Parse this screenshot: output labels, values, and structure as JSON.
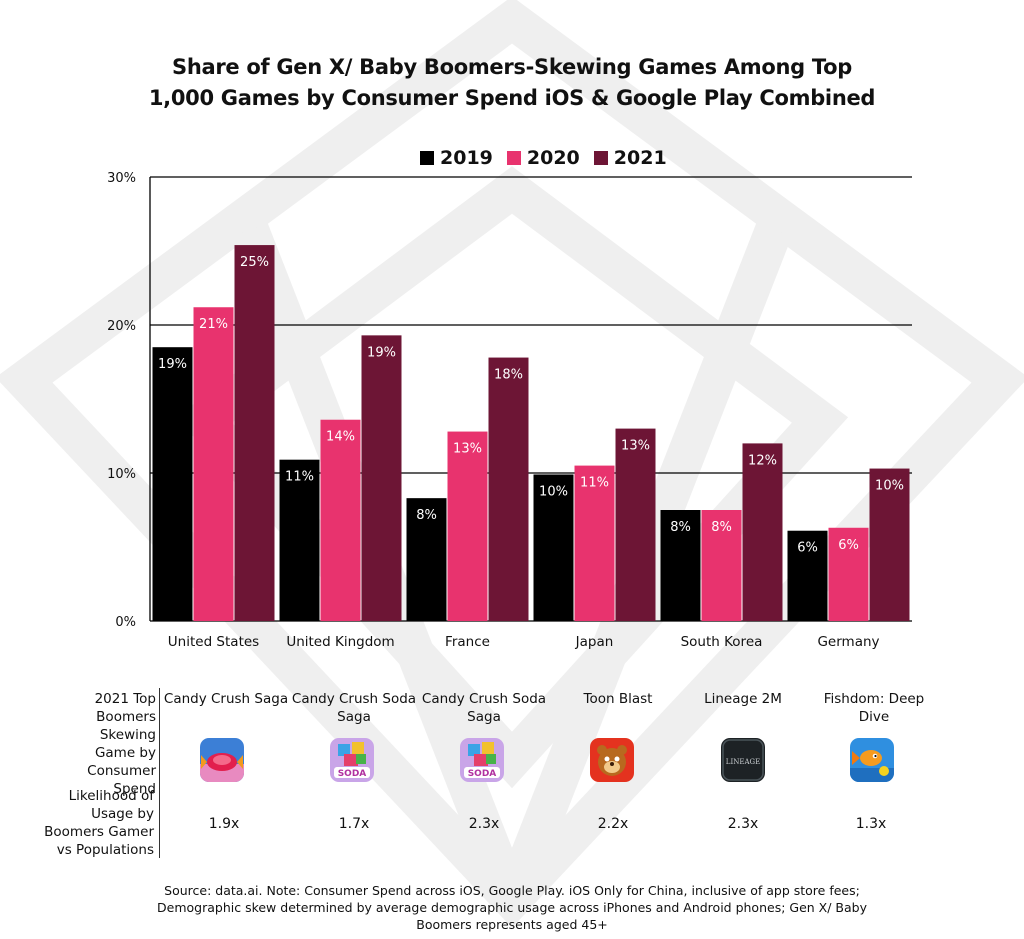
{
  "title": {
    "line1": "Share of Gen X/ Baby Boomers-Skewing Games Among Top",
    "line2": "1,000 Games by Consumer Spend iOS & Google Play Combined"
  },
  "colors": {
    "s2019": "#000000",
    "s2020": "#e8336e",
    "s2021": "#6d1535",
    "grid": "#000000",
    "watermark": "#ececec"
  },
  "chart_data": {
    "type": "bar",
    "categories": [
      "United States",
      "United Kingdom",
      "France",
      "Japan",
      "South Korea",
      "Germany"
    ],
    "series": [
      {
        "name": "2019",
        "values": [
          18.5,
          10.9,
          8.3,
          9.9,
          7.5,
          6.1
        ],
        "labels": [
          "19%",
          "11%",
          "8%",
          "10%",
          "8%",
          "6%"
        ]
      },
      {
        "name": "2020",
        "values": [
          21.2,
          13.6,
          12.8,
          10.5,
          7.5,
          6.3
        ],
        "labels": [
          "21%",
          "14%",
          "13%",
          "11%",
          "8%",
          "6%"
        ]
      },
      {
        "name": "2021",
        "values": [
          25.4,
          19.3,
          17.8,
          13.0,
          12.0,
          10.3
        ],
        "labels": [
          "25%",
          "19%",
          "18%",
          "13%",
          "12%",
          "10%"
        ]
      }
    ],
    "yticks": [
      "0%",
      "10%",
      "20%",
      "30%"
    ],
    "ylim": [
      0,
      30
    ],
    "legend": "top-center",
    "grid": true
  },
  "table": {
    "row1_label": "2021 Top Boomers Skewing Game by Consumer Spend",
    "row2_label": "Likelihood of Usage by Boomers Gamer vs Populations",
    "games": [
      {
        "name": "Candy Crush Saga",
        "icon": "candy-crush-saga-icon",
        "likelihood": "1.9x"
      },
      {
        "name": "Candy Crush Soda Saga",
        "icon": "candy-crush-soda-saga-icon",
        "likelihood": "1.7x"
      },
      {
        "name": "Candy Crush Soda Saga",
        "icon": "candy-crush-soda-saga-icon",
        "likelihood": "2.3x"
      },
      {
        "name": "Toon Blast",
        "icon": "toon-blast-icon",
        "likelihood": "2.2x"
      },
      {
        "name": "Lineage 2M",
        "icon": "lineage-2m-icon",
        "likelihood": "2.3x"
      },
      {
        "name": "Fishdom: Deep Dive",
        "icon": "fishdom-icon",
        "likelihood": "1.3x"
      }
    ],
    "icon_text": {
      "soda": "SODA",
      "lineage": "LINEAGE"
    }
  },
  "source": {
    "line1": "Source: data.ai. Note: Consumer Spend across iOS, Google Play. iOS Only for China, inclusive of app store fees;",
    "line2": "Demographic skew determined by average demographic usage across iPhones and Android phones; Gen X/ Baby",
    "line3": "Boomers represents aged 45+"
  }
}
